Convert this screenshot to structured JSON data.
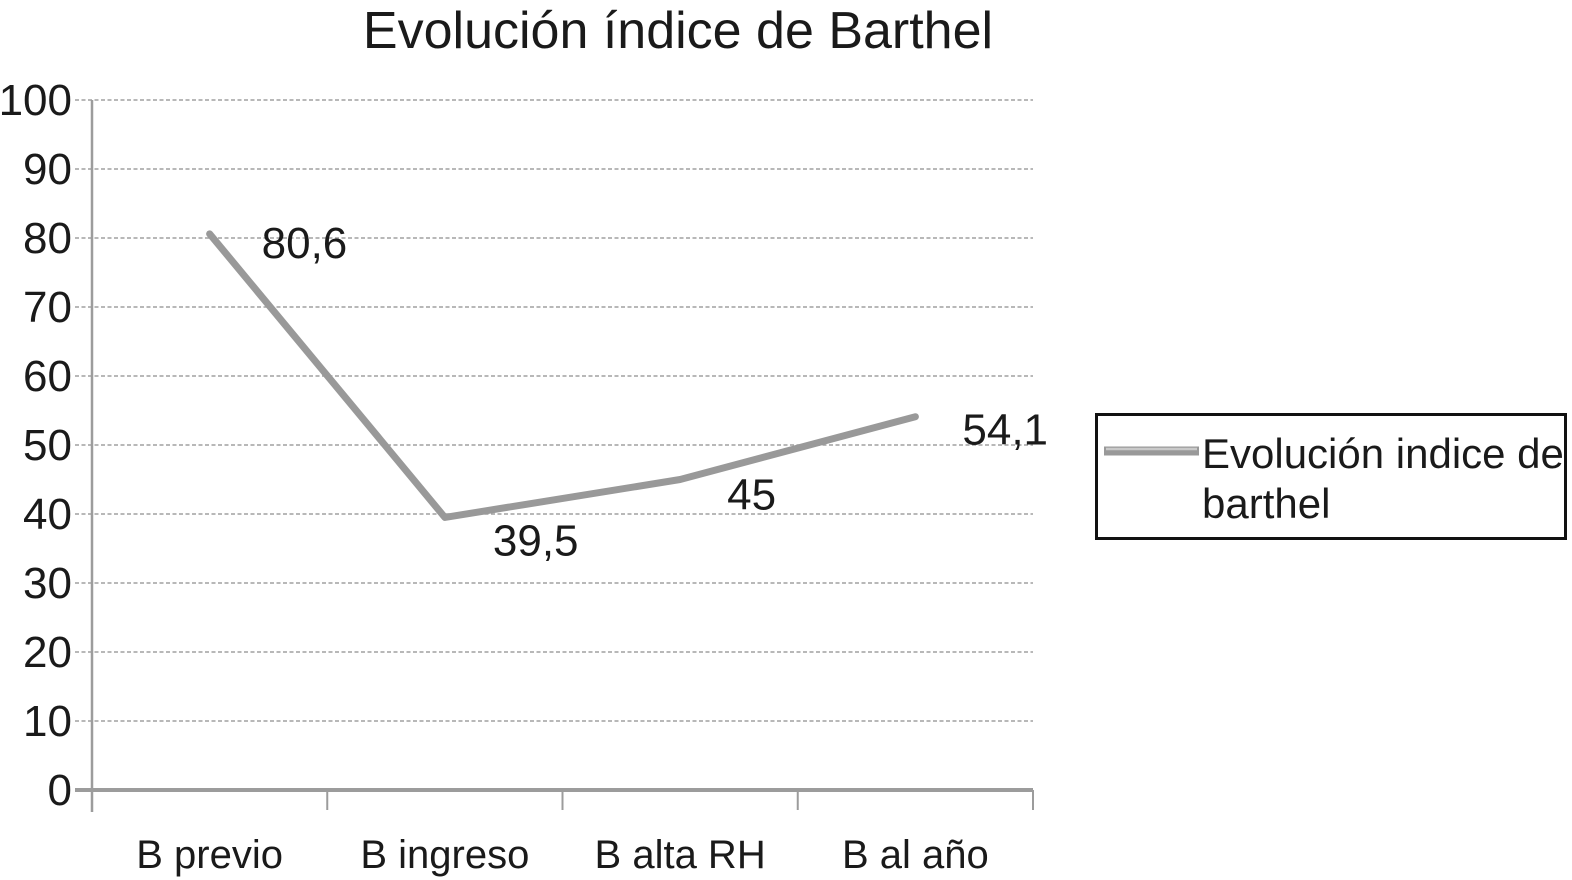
{
  "page": {
    "background": "#ffffff"
  },
  "chart_data": {
    "type": "line",
    "title": "Evolución índice de Barthel",
    "categories": [
      "B previo",
      "B ingreso",
      "B alta RH",
      "B al año"
    ],
    "series": [
      {
        "name": "Evolución indice de barthel",
        "values": [
          80.6,
          39.5,
          45,
          54.1
        ],
        "point_labels": [
          "80,6",
          "39,5",
          "45",
          "54,1"
        ],
        "color": "#999999"
      }
    ],
    "xlabel": "",
    "ylabel": "",
    "ylim": [
      0,
      100
    ],
    "yticks": [
      0,
      10,
      20,
      30,
      40,
      50,
      60,
      70,
      80,
      90,
      100
    ],
    "grid": true,
    "grid_color": "#a0a0a0",
    "axis_color": "#9c9c9c",
    "text_color": "#1a1a1a",
    "legend_position": "right",
    "legend": {
      "lines": [
        "Evolución indice de",
        "barthel"
      ],
      "border_color": "#111111",
      "swatch_color": "#999999",
      "swatch_highlight": "#c9c9c9",
      "background": "#ffffff"
    }
  }
}
